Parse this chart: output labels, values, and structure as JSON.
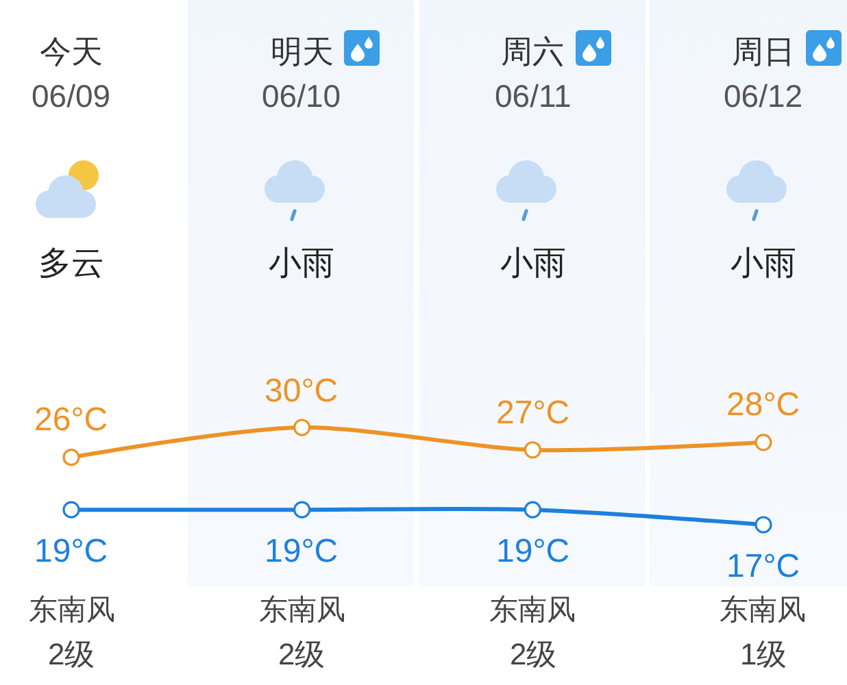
{
  "chart_data": {
    "type": "line",
    "categories": [
      "今天",
      "明天",
      "周六",
      "周日"
    ],
    "series": [
      {
        "color": "#ec9326",
        "values": [
          26,
          30,
          27,
          28
        ],
        "value_labels": [
          "26°C",
          "30°C",
          "27°C",
          "28°C"
        ]
      },
      {
        "color": "#1d80dc",
        "values": [
          19,
          19,
          19,
          17
        ],
        "value_labels": [
          "19°C",
          "19°C",
          "19°C",
          "17°C"
        ]
      }
    ],
    "annotations": [
      "06/09",
      "06/10",
      "06/11",
      "06/12",
      "多云",
      "小雨",
      "小雨",
      "小雨",
      "东南风",
      "东南风",
      "东南风",
      "东南风",
      "2级",
      "2级",
      "2级",
      "1级"
    ],
    "marker": "circle",
    "line_style": "solid",
    "tick_labels": "x"
  }
}
